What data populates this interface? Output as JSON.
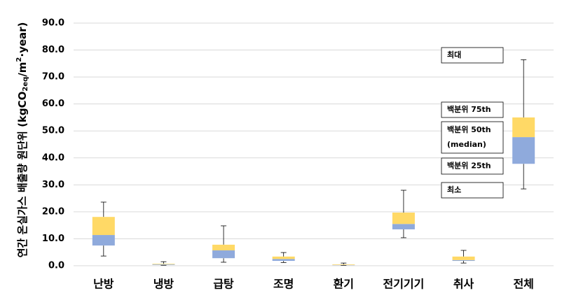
{
  "chart_data": {
    "type": "box",
    "ylabel": [
      "연간 온실가스 배출량 원단위 (kgCO",
      "2eq",
      "/m",
      "2",
      "·year)"
    ],
    "categories": [
      "난방",
      "냉방",
      "급탕",
      "조명",
      "환기",
      "전기기기",
      "취사",
      "전체"
    ],
    "min": [
      3.6,
      0.2,
      1.3,
      1.2,
      0.1,
      10.4,
      1.0,
      28.5
    ],
    "q1": [
      7.5,
      0.3,
      2.8,
      1.8,
      0.2,
      13.5,
      1.8,
      37.8
    ],
    "median": [
      11.4,
      0.5,
      5.7,
      2.5,
      0.3,
      15.5,
      2.1,
      47.7
    ],
    "q3": [
      18.1,
      0.7,
      7.8,
      3.4,
      0.5,
      19.7,
      3.4,
      55.0
    ],
    "max": [
      23.6,
      1.5,
      14.8,
      4.9,
      1.0,
      28.0,
      5.7,
      76.4
    ],
    "lower_color": "#8faadc",
    "upper_color": "#ffd966",
    "ylim": [
      0,
      90
    ],
    "yticks": [
      {
        "value": 0,
        "label": "0.0"
      },
      {
        "value": 10,
        "label": "10.0"
      },
      {
        "value": 20,
        "label": "20.0"
      },
      {
        "value": 30,
        "label": "30.0"
      },
      {
        "value": 40,
        "label": "40.0"
      },
      {
        "value": 50,
        "label": "50.0"
      },
      {
        "value": 60,
        "label": "60.0"
      },
      {
        "value": 70,
        "label": "70.0"
      },
      {
        "value": 80,
        "label": "80.0"
      },
      {
        "value": 90,
        "label": "90.0"
      }
    ],
    "grid": true,
    "annotations": [
      [
        "최대"
      ],
      [
        "백분위 75th"
      ],
      [
        "백분위 50th",
        "(median)"
      ],
      [
        "백분위 25th"
      ],
      [
        "최소"
      ]
    ]
  }
}
